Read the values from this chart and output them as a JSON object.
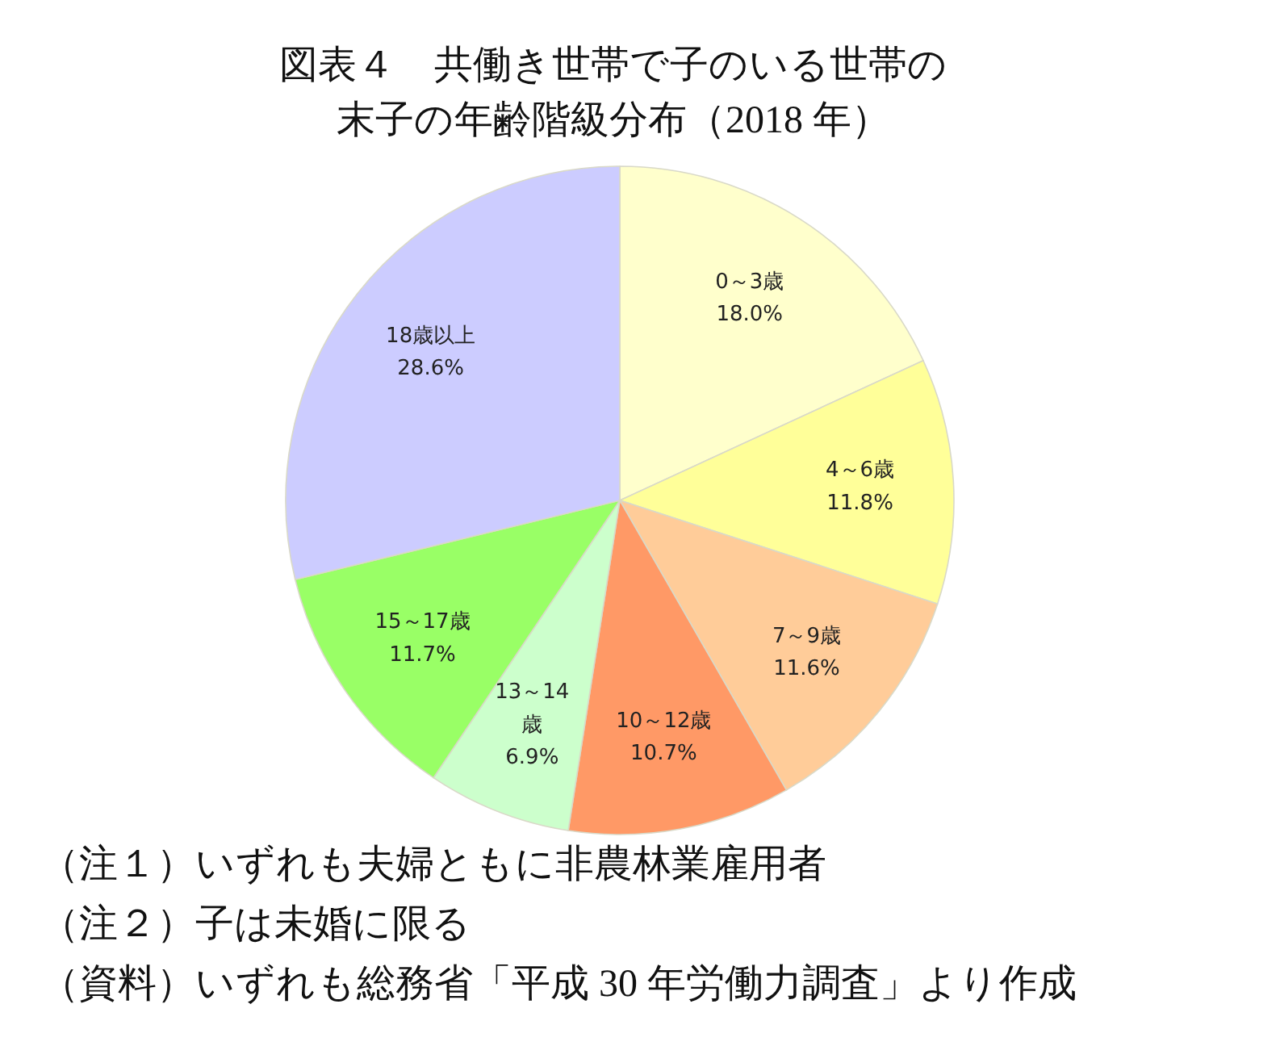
{
  "chart_data": {
    "type": "pie",
    "title": "図表４　共働き世帯で子のいる世帯の末子の年齢階級分布（2018 年）",
    "categories": [
      "0～3歳",
      "4～6歳",
      "7～9歳",
      "10～12歳",
      "13～14歳",
      "15～17歳",
      "18歳以上"
    ],
    "values": [
      18.0,
      11.8,
      11.6,
      10.7,
      6.9,
      11.7,
      28.6
    ],
    "value_labels": [
      "18.0%",
      "11.8%",
      "11.6%",
      "10.7%",
      "6.9%",
      "11.7%",
      "28.6%"
    ],
    "colors": [
      "#ffffcc",
      "#ffff99",
      "#ffcc99",
      "#ff9966",
      "#ccffcc",
      "#99ff66",
      "#ccccff"
    ],
    "annotations": [
      "（注１）いずれも夫婦ともに非農林業雇用者",
      "（注２）子は未婚に限る",
      "（資料）いずれも総務省「平成 30 年労働力調査」より作成"
    ],
    "legend": false
  }
}
